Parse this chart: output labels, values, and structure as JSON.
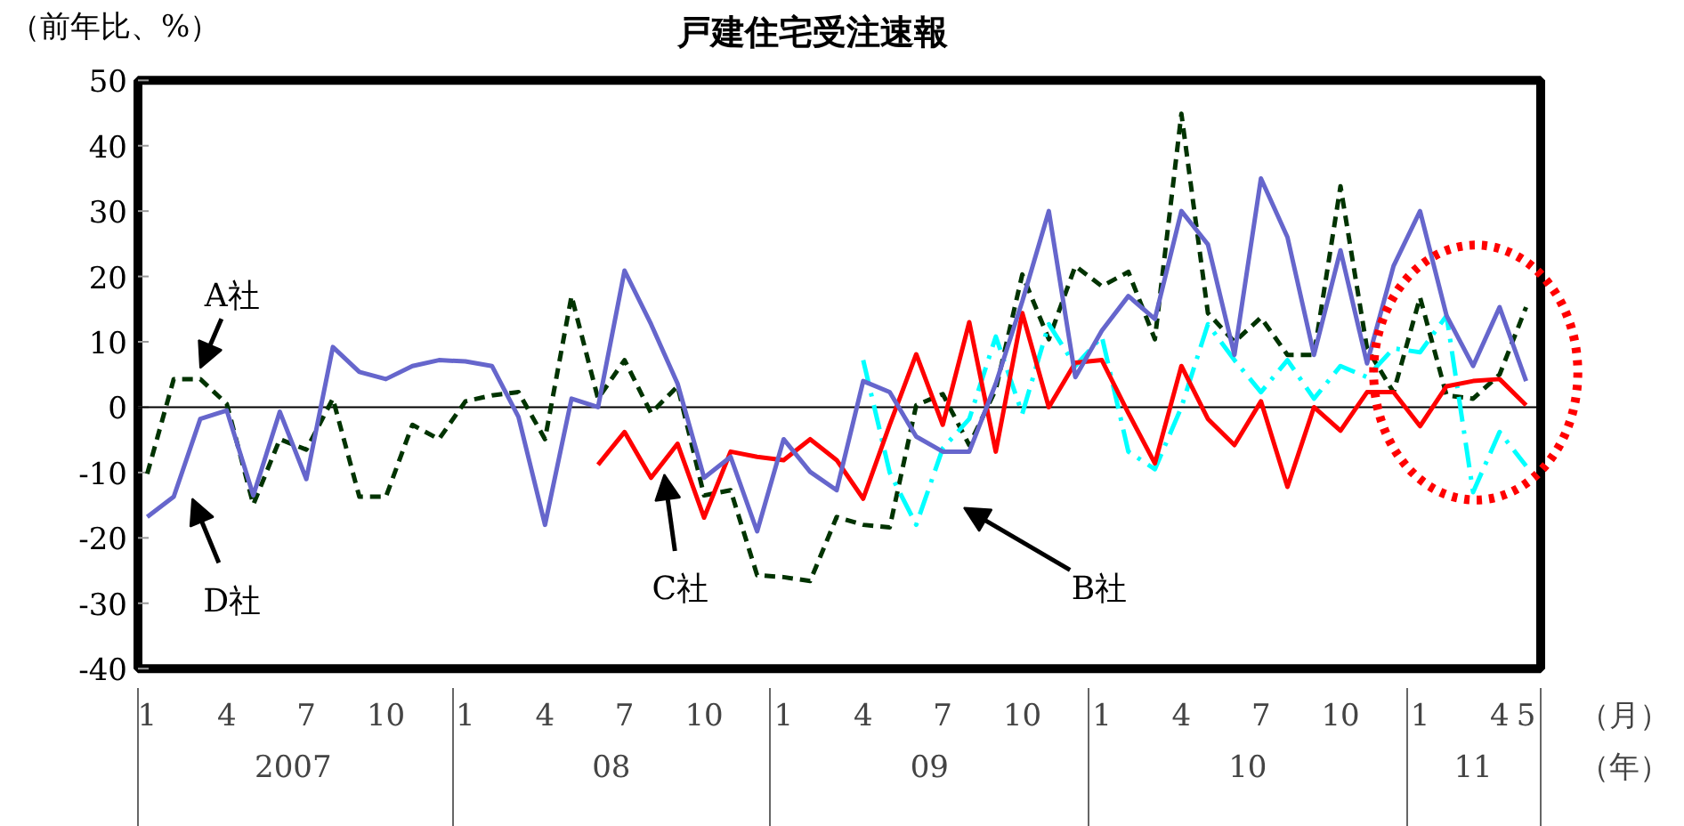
{
  "chart_data": {
    "type": "line",
    "title": "戸建住宅受注速報",
    "ylabel": "（前年比、%）",
    "xlabel": "（月）",
    "categories": [
      "1",
      null,
      null,
      "4",
      null,
      null,
      "7",
      null,
      null,
      "10",
      null,
      null,
      "1",
      null,
      null,
      "4",
      null,
      null,
      "7",
      null,
      null,
      "10",
      null,
      null,
      "1",
      null,
      null,
      "4",
      null,
      null,
      "7",
      null,
      null,
      "10",
      null,
      null,
      "1",
      null,
      null,
      "4",
      null,
      null,
      "7",
      null,
      null,
      "10",
      null,
      null,
      "1",
      null,
      null,
      "4",
      "5"
    ],
    "annotations": [
      "2007",
      "08",
      "09",
      "10",
      "11",
      "（年）"
    ],
    "series": [
      {
        "name": "A社",
        "color": "#003300",
        "line_style": "dashed",
        "values": [
          -10.2,
          4.3,
          4.3,
          0.5,
          -14.9,
          -4.9,
          -6.5,
          1.3,
          -13.7,
          -13.7,
          -2.7,
          -4.9,
          0.9,
          1.8,
          2.3,
          -4.9,
          17,
          1.3,
          7.2,
          -0.9,
          3.2,
          -13.5,
          -12.7,
          -25.7,
          -26,
          -26.6,
          -16.8,
          -18,
          -18.4,
          0.3,
          2,
          -5.8,
          2.7,
          20.3,
          10.4,
          21.6,
          18.5,
          20.7,
          10.4,
          44.9,
          14.4,
          10,
          13.7,
          8,
          8,
          33.8,
          9,
          2.3,
          16.8,
          1.8,
          1.3,
          5,
          15.3
        ]
      },
      {
        "name": "B社",
        "color": "#00ffff",
        "line_style": "dashdot",
        "values": [
          null,
          null,
          null,
          null,
          null,
          null,
          null,
          null,
          null,
          null,
          null,
          null,
          null,
          null,
          null,
          null,
          null,
          null,
          null,
          null,
          null,
          null,
          null,
          null,
          null,
          null,
          null,
          7.2,
          -10,
          -18,
          -6.3,
          -1.8,
          10.8,
          -1,
          12.7,
          6.3,
          10.8,
          -6.8,
          -9.5,
          0,
          12.7,
          7.2,
          2.3,
          7.2,
          1.3,
          6.3,
          4.6,
          9,
          8.4,
          14,
          -13,
          -3.8,
          -9
        ]
      },
      {
        "name": "C社",
        "color": "#ff0000",
        "line_style": "solid",
        "values": [
          null,
          null,
          null,
          null,
          null,
          null,
          null,
          null,
          null,
          null,
          null,
          null,
          null,
          null,
          null,
          null,
          null,
          -8.8,
          -3.8,
          -10.8,
          -5.6,
          -16.9,
          -6.8,
          -7.6,
          -8.1,
          -4.9,
          -8.1,
          -14,
          -2.7,
          8.1,
          -2.7,
          13,
          -6.8,
          14.4,
          0,
          6.8,
          7.2,
          -0.9,
          -8.6,
          6.3,
          -1.8,
          -5.8,
          0.9,
          -12.2,
          0,
          -3.6,
          2.3,
          2.3,
          -2.9,
          3.2,
          4,
          4.3,
          0.3
        ]
      },
      {
        "name": "D社",
        "color": "#6666cc",
        "line_style": "solid",
        "values": [
          -16.8,
          -13.7,
          -1.8,
          -0.5,
          -13.5,
          -0.7,
          -11,
          9.2,
          5.4,
          4.3,
          6.3,
          7.2,
          7,
          6.3,
          -1.5,
          -18,
          1.3,
          0,
          20.9,
          12.7,
          3.6,
          -10.8,
          -7.6,
          -19,
          -4.9,
          -9.9,
          -12.7,
          4,
          2.3,
          -4.5,
          -6.8,
          -6.8,
          3.6,
          16.2,
          30,
          4.6,
          11.7,
          17,
          13.5,
          30,
          24.9,
          8,
          35,
          26,
          8,
          24,
          6.7,
          21.6,
          30,
          14,
          6.3,
          15.3,
          4
        ]
      }
    ],
    "ylim": [
      -40,
      50
    ],
    "yticks": [
      -40,
      -30,
      -20,
      -10,
      0,
      10,
      20,
      30,
      40,
      50
    ],
    "ref_lines": [
      {
        "axis": "y",
        "value": 0,
        "color": "#000000"
      }
    ],
    "grid": false,
    "legend": false
  }
}
